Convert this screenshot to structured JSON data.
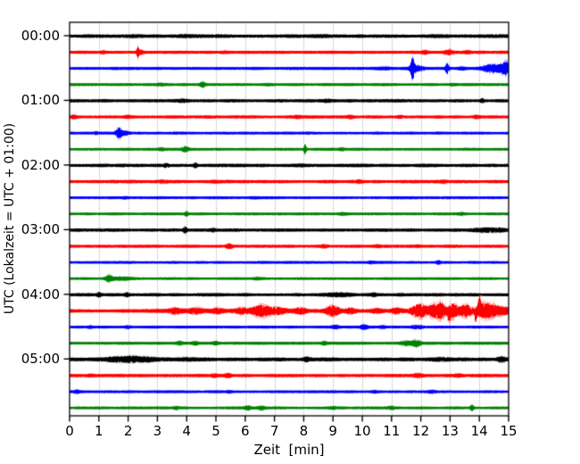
{
  "chart_data": {
    "type": "line",
    "variant": "seismogram-helicorder-dayplot",
    "title": "",
    "xlabel": "Zeit  [min]",
    "ylabel": "UTC (Lokalzeit = UTC + 01:00)",
    "xlim": [
      0,
      15
    ],
    "minutes_per_line": 15,
    "x_tick_labels": [
      "0",
      "1",
      "2",
      "3",
      "4",
      "5",
      "6",
      "7",
      "8",
      "9",
      "10",
      "11",
      "12",
      "13",
      "14",
      "15"
    ],
    "y_tick_labels": [
      "00:00",
      "01:00",
      "02:00",
      "03:00",
      "04:00",
      "05:00"
    ],
    "y_tick_trace_indices": [
      0,
      4,
      8,
      12,
      16,
      20
    ],
    "grid": {
      "vertical": true,
      "style": "dotted",
      "color": "#909090"
    },
    "color_cycle": [
      "#000000",
      "#ff0000",
      "#0000ff",
      "#008000"
    ],
    "axis_color": "#000000",
    "background": "#ffffff",
    "noise_seed": 1337,
    "traces": [
      {
        "start": "00:00",
        "base": 1.35,
        "events": [
          {
            "t": 2.2,
            "w": 0.15,
            "a": 0.5
          },
          {
            "t": 4.0,
            "w": 0.25,
            "a": 0.6
          },
          {
            "t": 8.5,
            "w": 0.3,
            "a": 0.5
          },
          {
            "t": 12.5,
            "w": 0.25,
            "a": 0.5
          }
        ]
      },
      {
        "start": "00:15",
        "base": 1.15,
        "events": [
          {
            "t": 1.15,
            "w": 0.07,
            "a": 0.9
          },
          {
            "t": 2.33,
            "w": 0.03,
            "a": 4.5
          },
          {
            "t": 2.43,
            "w": 0.08,
            "a": 1.6
          },
          {
            "t": 5.3,
            "w": 0.1,
            "a": 0.6
          },
          {
            "t": 12.15,
            "w": 0.07,
            "a": 1.1
          },
          {
            "t": 12.95,
            "w": 0.1,
            "a": 1.8
          },
          {
            "t": 13.6,
            "w": 0.1,
            "a": 0.9
          }
        ]
      },
      {
        "start": "00:30",
        "base": 1.0,
        "events": [
          {
            "t": 10.7,
            "w": 0.25,
            "a": 0.8
          },
          {
            "t": 11.72,
            "w": 0.045,
            "a": 10.5
          },
          {
            "t": 11.85,
            "w": 0.18,
            "a": 2.2
          },
          {
            "t": 12.9,
            "w": 0.045,
            "a": 4.6
          },
          {
            "t": 13.4,
            "w": 0.1,
            "a": 1.0
          },
          {
            "t": 14.45,
            "w": 0.25,
            "a": 3.4
          },
          {
            "t": 14.9,
            "w": 0.12,
            "a": 5.6
          }
        ]
      },
      {
        "start": "00:45",
        "base": 0.95,
        "events": [
          {
            "t": 3.1,
            "w": 0.1,
            "a": 0.7
          },
          {
            "t": 4.55,
            "w": 0.06,
            "a": 2.2
          },
          {
            "t": 6.8,
            "w": 0.1,
            "a": 0.5
          },
          {
            "t": 13.1,
            "w": 0.1,
            "a": 0.7
          }
        ]
      },
      {
        "start": "01:00",
        "base": 1.2,
        "events": [
          {
            "t": 3.9,
            "w": 0.12,
            "a": 0.9
          },
          {
            "t": 8.8,
            "w": 0.1,
            "a": 0.6
          },
          {
            "t": 14.1,
            "w": 0.05,
            "a": 1.6
          }
        ]
      },
      {
        "start": "01:15",
        "base": 1.15,
        "events": [
          {
            "t": 0.15,
            "w": 0.07,
            "a": 1.2
          },
          {
            "t": 2.0,
            "w": 0.1,
            "a": 0.8
          },
          {
            "t": 7.8,
            "w": 0.09,
            "a": 1.1
          },
          {
            "t": 9.6,
            "w": 0.07,
            "a": 1.1
          },
          {
            "t": 11.3,
            "w": 0.09,
            "a": 0.8
          },
          {
            "t": 13.9,
            "w": 0.09,
            "a": 1.1
          }
        ]
      },
      {
        "start": "01:30",
        "base": 1.0,
        "events": [
          {
            "t": 0.9,
            "w": 0.08,
            "a": 0.7
          },
          {
            "t": 1.68,
            "w": 0.07,
            "a": 4.5
          },
          {
            "t": 1.88,
            "w": 0.12,
            "a": 1.5
          }
        ]
      },
      {
        "start": "01:45",
        "base": 0.95,
        "events": [
          {
            "t": 3.15,
            "w": 0.08,
            "a": 0.8
          },
          {
            "t": 3.95,
            "w": 0.08,
            "a": 2.1
          },
          {
            "t": 8.05,
            "w": 0.035,
            "a": 4.4
          },
          {
            "t": 9.3,
            "w": 0.07,
            "a": 1.1
          }
        ]
      },
      {
        "start": "02:00",
        "base": 1.25,
        "events": [
          {
            "t": 3.3,
            "w": 0.07,
            "a": 1.2
          },
          {
            "t": 4.3,
            "w": 0.045,
            "a": 1.9
          },
          {
            "t": 7.9,
            "w": 0.1,
            "a": 0.5
          }
        ]
      },
      {
        "start": "02:15",
        "base": 1.2,
        "events": [
          {
            "t": 3.2,
            "w": 0.1,
            "a": 0.8
          },
          {
            "t": 5.0,
            "w": 0.1,
            "a": 0.6
          },
          {
            "t": 9.9,
            "w": 0.09,
            "a": 0.7
          },
          {
            "t": 12.8,
            "w": 0.1,
            "a": 0.6
          }
        ]
      },
      {
        "start": "02:30",
        "base": 0.95,
        "events": [
          {
            "t": 1.9,
            "w": 0.1,
            "a": 0.7
          },
          {
            "t": 6.3,
            "w": 0.1,
            "a": 0.5
          }
        ]
      },
      {
        "start": "02:45",
        "base": 0.9,
        "events": [
          {
            "t": 4.0,
            "w": 0.04,
            "a": 1.8
          },
          {
            "t": 9.35,
            "w": 0.09,
            "a": 0.9
          },
          {
            "t": 13.4,
            "w": 0.09,
            "a": 0.9
          }
        ]
      },
      {
        "start": "03:00",
        "base": 1.2,
        "events": [
          {
            "t": 3.95,
            "w": 0.045,
            "a": 2.6
          },
          {
            "t": 4.9,
            "w": 0.07,
            "a": 0.9
          },
          {
            "t": 14.4,
            "w": 0.35,
            "a": 1.5
          }
        ]
      },
      {
        "start": "03:15",
        "base": 1.1,
        "events": [
          {
            "t": 5.45,
            "w": 0.08,
            "a": 2.1
          },
          {
            "t": 8.7,
            "w": 0.07,
            "a": 0.9
          },
          {
            "t": 10.5,
            "w": 0.09,
            "a": 0.7
          },
          {
            "t": 11.9,
            "w": 0.07,
            "a": 0.6
          }
        ]
      },
      {
        "start": "03:30",
        "base": 0.95,
        "events": [
          {
            "t": 10.3,
            "w": 0.08,
            "a": 0.7
          },
          {
            "t": 12.6,
            "w": 0.055,
            "a": 1.3
          }
        ]
      },
      {
        "start": "03:45",
        "base": 0.9,
        "events": [
          {
            "t": 1.35,
            "w": 0.08,
            "a": 2.7
          },
          {
            "t": 1.75,
            "w": 0.3,
            "a": 1.1
          },
          {
            "t": 6.4,
            "w": 0.09,
            "a": 0.7
          }
        ]
      },
      {
        "start": "04:00",
        "base": 1.2,
        "events": [
          {
            "t": 1.0,
            "w": 0.055,
            "a": 1.6
          },
          {
            "t": 1.95,
            "w": 0.055,
            "a": 1.2
          },
          {
            "t": 9.2,
            "w": 0.3,
            "a": 1.1
          },
          {
            "t": 10.4,
            "w": 0.07,
            "a": 0.9
          },
          {
            "t": 11.3,
            "w": 0.1,
            "a": 0.6
          }
        ]
      },
      {
        "start": "04:15",
        "base": 1.25,
        "events": [
          {
            "t": 5.0,
            "w": 2.0,
            "a": 0.6
          },
          {
            "t": 3.6,
            "w": 0.15,
            "a": 1.6
          },
          {
            "t": 4.3,
            "w": 0.18,
            "a": 1.8
          },
          {
            "t": 5.05,
            "w": 0.15,
            "a": 1.7
          },
          {
            "t": 5.9,
            "w": 0.15,
            "a": 2.0
          },
          {
            "t": 6.55,
            "w": 0.22,
            "a": 5.0
          },
          {
            "t": 7.15,
            "w": 0.2,
            "a": 2.5
          },
          {
            "t": 7.9,
            "w": 0.15,
            "a": 2.2
          },
          {
            "t": 9.0,
            "w": 0.18,
            "a": 4.5
          },
          {
            "t": 9.6,
            "w": 0.12,
            "a": 2.0
          },
          {
            "t": 10.5,
            "w": 0.15,
            "a": 1.8
          },
          {
            "t": 11.2,
            "w": 0.15,
            "a": 2.2
          },
          {
            "t": 11.95,
            "w": 0.2,
            "a": 6.0
          },
          {
            "t": 12.45,
            "w": 0.15,
            "a": 5.5
          },
          {
            "t": 12.7,
            "w": 0.1,
            "a": 6.5
          },
          {
            "t": 12.96,
            "w": 0.04,
            "a": 8.0,
            "d": -1
          },
          {
            "t": 13.1,
            "w": 0.13,
            "a": 6.5
          },
          {
            "t": 13.55,
            "w": 0.15,
            "a": 5.5
          },
          {
            "t": 13.88,
            "w": 0.025,
            "a": 12.0,
            "d": -1
          },
          {
            "t": 14.0,
            "w": 0.035,
            "a": 13.0,
            "d": 1
          },
          {
            "t": 14.1,
            "w": 0.15,
            "a": 5.5
          },
          {
            "t": 14.35,
            "w": 0.15,
            "a": 4.0
          },
          {
            "t": 14.6,
            "w": 0.18,
            "a": 3.0
          },
          {
            "t": 14.9,
            "w": 0.15,
            "a": 2.0
          }
        ]
      },
      {
        "start": "04:30",
        "base": 1.0,
        "events": [
          {
            "t": 0.7,
            "w": 0.07,
            "a": 0.9
          },
          {
            "t": 2.0,
            "w": 0.07,
            "a": 0.9
          },
          {
            "t": 9.1,
            "w": 0.09,
            "a": 1.1
          },
          {
            "t": 10.05,
            "w": 0.1,
            "a": 1.8
          },
          {
            "t": 10.7,
            "w": 0.08,
            "a": 1.0
          },
          {
            "t": 11.8,
            "w": 0.07,
            "a": 0.9
          },
          {
            "t": 12.0,
            "w": 0.06,
            "a": 0.8
          }
        ]
      },
      {
        "start": "04:45",
        "base": 1.0,
        "events": [
          {
            "t": 3.75,
            "w": 0.07,
            "a": 1.3
          },
          {
            "t": 4.3,
            "w": 0.07,
            "a": 1.1
          },
          {
            "t": 5.0,
            "w": 0.08,
            "a": 1.3
          },
          {
            "t": 8.7,
            "w": 0.07,
            "a": 1.2
          },
          {
            "t": 11.5,
            "w": 0.15,
            "a": 1.5
          },
          {
            "t": 11.85,
            "w": 0.1,
            "a": 2.6
          }
        ]
      },
      {
        "start": "05:00",
        "base": 1.45,
        "events": [
          {
            "t": 1.6,
            "w": 0.25,
            "a": 1.5
          },
          {
            "t": 2.1,
            "w": 0.2,
            "a": 1.7
          },
          {
            "t": 2.6,
            "w": 0.25,
            "a": 1.2
          },
          {
            "t": 3.9,
            "w": 0.3,
            "a": 0.6
          },
          {
            "t": 8.1,
            "w": 0.09,
            "a": 1.1
          },
          {
            "t": 12.6,
            "w": 0.3,
            "a": 0.8
          },
          {
            "t": 14.75,
            "w": 0.1,
            "a": 1.6
          }
        ]
      },
      {
        "start": "05:15",
        "base": 1.15,
        "events": [
          {
            "t": 0.7,
            "w": 0.1,
            "a": 0.8
          },
          {
            "t": 4.95,
            "w": 0.08,
            "a": 1.1
          },
          {
            "t": 5.42,
            "w": 0.08,
            "a": 1.5
          },
          {
            "t": 11.9,
            "w": 0.1,
            "a": 1.4
          },
          {
            "t": 13.3,
            "w": 0.1,
            "a": 0.7
          }
        ]
      },
      {
        "start": "05:30",
        "base": 0.95,
        "events": [
          {
            "t": 0.25,
            "w": 0.07,
            "a": 1.0
          },
          {
            "t": 5.45,
            "w": 0.07,
            "a": 0.8
          },
          {
            "t": 10.4,
            "w": 0.09,
            "a": 0.6
          },
          {
            "t": 12.4,
            "w": 0.09,
            "a": 0.8
          }
        ]
      },
      {
        "start": "05:45",
        "base": 0.95,
        "events": [
          {
            "t": 3.65,
            "w": 0.08,
            "a": 1.1
          },
          {
            "t": 6.1,
            "w": 0.08,
            "a": 1.3
          },
          {
            "t": 6.55,
            "w": 0.08,
            "a": 1.3
          },
          {
            "t": 9.0,
            "w": 0.09,
            "a": 0.8
          },
          {
            "t": 11.0,
            "w": 0.09,
            "a": 0.7
          },
          {
            "t": 13.75,
            "w": 0.045,
            "a": 2.3
          }
        ]
      }
    ]
  }
}
